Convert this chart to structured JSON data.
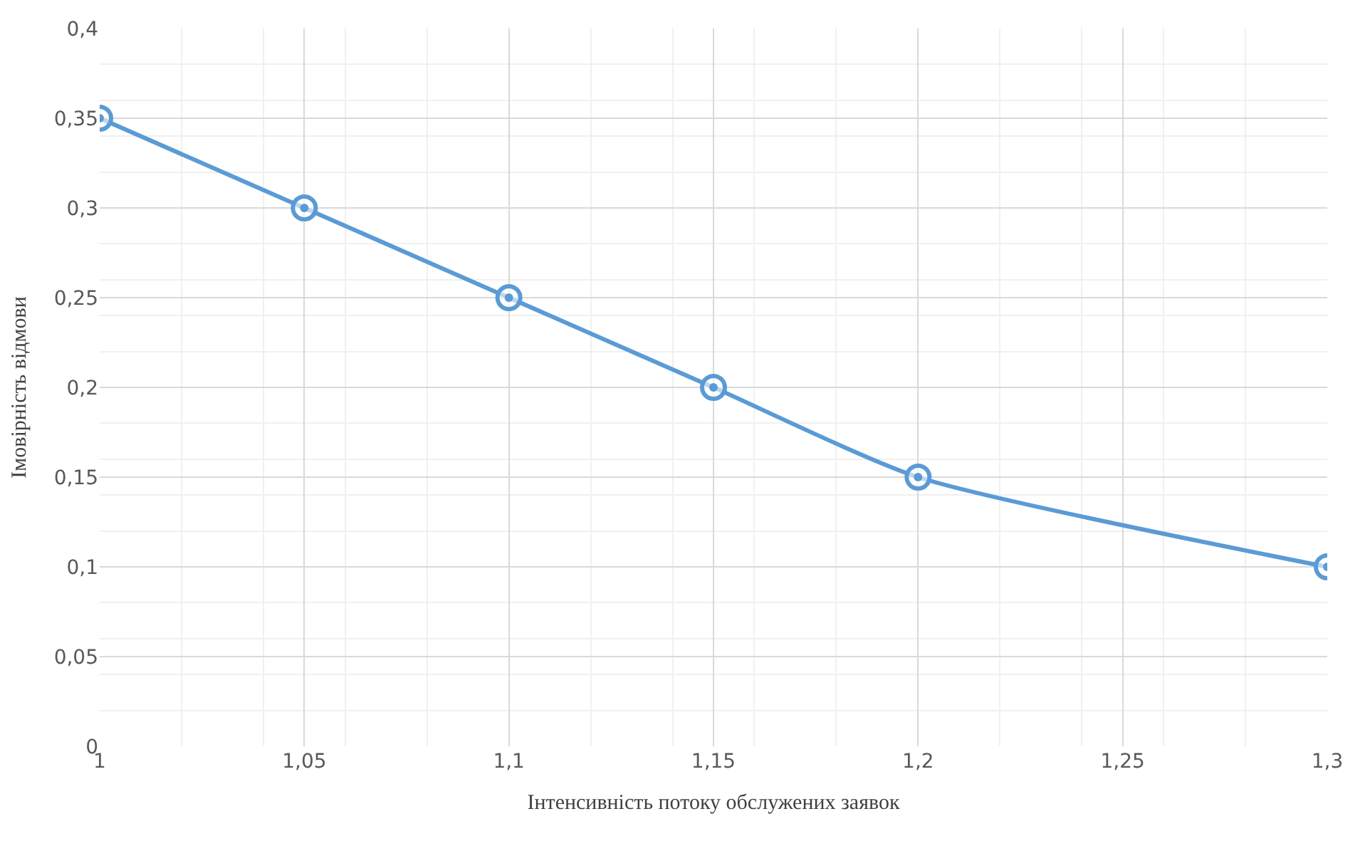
{
  "chart_data": {
    "type": "line",
    "xlabel": "Інтенсивність потоку обслужених заявок",
    "ylabel": "Імовірність відмови",
    "x": [
      1,
      1.05,
      1.1,
      1.15,
      1.2,
      1.3
    ],
    "series": [
      {
        "color": "#5b9bd5",
        "values": [
          0.35,
          0.3,
          0.25,
          0.2,
          0.15,
          0.1
        ]
      }
    ],
    "xlim": [
      1,
      1.3
    ],
    "xticks": [
      1,
      {
        "value": 1.05,
        "label": "1,05"
      },
      {
        "value": 1.1,
        "label": "1,1"
      },
      {
        "value": 1.15,
        "label": "1,15"
      },
      {
        "value": 1.2,
        "label": "1,2"
      },
      {
        "value": 1.25,
        "label": "1,25"
      },
      {
        "value": 1.3,
        "label": "1,3"
      }
    ],
    "ylim": [
      0,
      0.4
    ],
    "yticks": [
      0,
      {
        "value": 0.05,
        "label": "0,05"
      },
      {
        "value": 0.1,
        "label": "0,1"
      },
      {
        "value": 0.15,
        "label": "0,15"
      },
      {
        "value": 0.2,
        "label": "0,2"
      },
      {
        "value": 0.25,
        "label": "0,25"
      },
      {
        "value": 0.3,
        "label": "0,3"
      },
      {
        "value": 0.35,
        "label": "0,35"
      },
      {
        "value": 0.4,
        "label": "0,4"
      }
    ],
    "grid": true,
    "marker": "circle",
    "line_style": "solid"
  }
}
